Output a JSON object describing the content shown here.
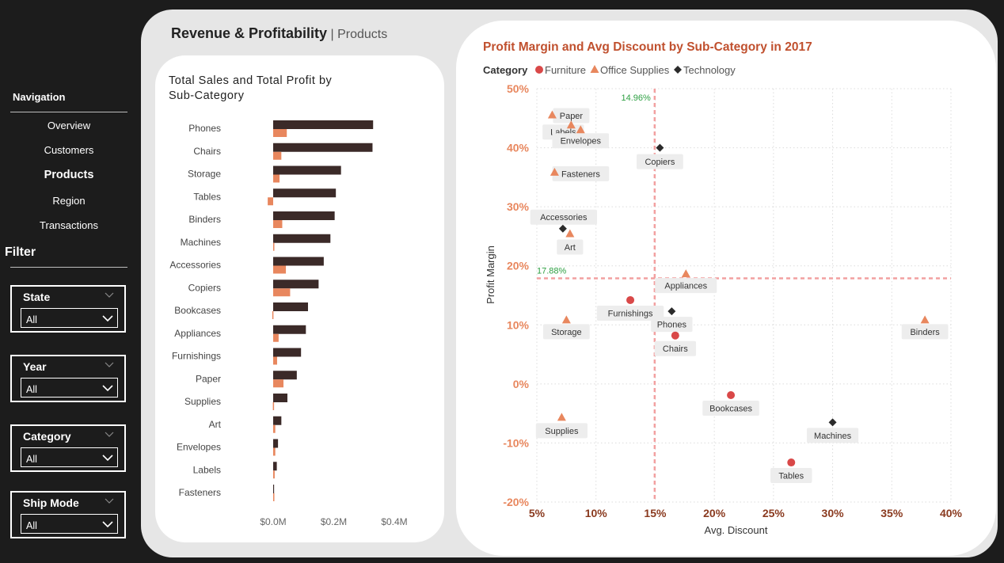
{
  "sidebar": {
    "nav_title": "Navigation",
    "nav_items": [
      "Overview",
      "Customers",
      "Products",
      "Region",
      "Transactions"
    ],
    "active_item": "Products",
    "filter_title": "Filter",
    "slicers": [
      {
        "label": "State",
        "value": "All"
      },
      {
        "label": "Year",
        "value": "All"
      },
      {
        "label": "Category",
        "value": "All"
      },
      {
        "label": "Ship Mode",
        "value": "All"
      }
    ]
  },
  "header": {
    "title": "Revenue &  Profitability",
    "separator": " | ",
    "subtitle": "Products"
  },
  "colors": {
    "sales": "#3b2a28",
    "profit": "#e8875e",
    "furniture": "#d94848",
    "office_supplies": "#e8875e",
    "technology": "#2b2b2b",
    "title_accent": "#c0502e",
    "axis_accent": "#e8875e",
    "ref_line": "#f2a0a0",
    "ref_label": "#2ea043"
  },
  "chart_data": [
    {
      "type": "bar",
      "title": "Total Sales and Total Profit by Sub-Category",
      "orientation": "horizontal",
      "categories": [
        "Phones",
        "Chairs",
        "Storage",
        "Tables",
        "Binders",
        "Machines",
        "Accessories",
        "Copiers",
        "Bookcases",
        "Appliances",
        "Furnishings",
        "Paper",
        "Supplies",
        "Art",
        "Envelopes",
        "Labels",
        "Fasteners"
      ],
      "series": [
        {
          "name": "Total Sales",
          "values": [
            330000,
            328000,
            224000,
            207000,
            203000,
            189000,
            167000,
            150000,
            115000,
            108000,
            92000,
            78000,
            47000,
            27000,
            16000,
            12000,
            3000
          ]
        },
        {
          "name": "Total Profit",
          "values": [
            45000,
            27000,
            21000,
            -18000,
            30000,
            3000,
            42000,
            56000,
            -3000,
            18000,
            13000,
            34000,
            -1000,
            7000,
            7000,
            5000,
            1000
          ]
        }
      ],
      "xlim": [
        0,
        400000
      ],
      "x_ticks": [
        "$0.0M",
        "$0.2M",
        "$0.4M"
      ]
    },
    {
      "type": "scatter",
      "title": "Profit Margin and Avg Discount by Sub-Category in 2017",
      "legend_title": "Category",
      "legend": [
        "Furniture",
        "Office Supplies",
        "Technology"
      ],
      "xlabel": "Avg. Discount",
      "ylabel": "Profit Margin",
      "xlim": [
        5,
        40
      ],
      "ylim": [
        -20,
        50
      ],
      "x_ticks": [
        "5%",
        "10%",
        "15%",
        "20%",
        "25%",
        "30%",
        "35%",
        "40%"
      ],
      "y_ticks": [
        "50%",
        "40%",
        "30%",
        "20%",
        "10%",
        "0%",
        "-10%",
        "-20%"
      ],
      "ref_x": {
        "value": 14.96,
        "label": "14.96%"
      },
      "ref_y": {
        "value": 17.88,
        "label": "17.88%"
      },
      "points": [
        {
          "label": "Paper",
          "category": "Office Supplies",
          "x": 6.3,
          "y": 45.5
        },
        {
          "label": "Labels",
          "category": "Office Supplies",
          "x": 7.9,
          "y": 43.8
        },
        {
          "label": "Envelopes",
          "category": "Office Supplies",
          "x": 8.7,
          "y": 43.0
        },
        {
          "label": "Fasteners",
          "category": "Office Supplies",
          "x": 6.5,
          "y": 35.8
        },
        {
          "label": "Copiers",
          "category": "Technology",
          "x": 15.4,
          "y": 40.0
        },
        {
          "label": "Accessories",
          "category": "Technology",
          "x": 7.2,
          "y": 26.3
        },
        {
          "label": "Art",
          "category": "Office Supplies",
          "x": 7.8,
          "y": 25.4
        },
        {
          "label": "Appliances",
          "category": "Office Supplies",
          "x": 17.6,
          "y": 18.6
        },
        {
          "label": "Furnishings",
          "category": "Furniture",
          "x": 12.9,
          "y": 14.2
        },
        {
          "label": "Phones",
          "category": "Technology",
          "x": 16.4,
          "y": 12.3
        },
        {
          "label": "Storage",
          "category": "Office Supplies",
          "x": 7.5,
          "y": 10.8
        },
        {
          "label": "Chairs",
          "category": "Furniture",
          "x": 16.7,
          "y": 8.2
        },
        {
          "label": "Binders",
          "category": "Office Supplies",
          "x": 37.8,
          "y": 10.8
        },
        {
          "label": "Bookcases",
          "category": "Furniture",
          "x": 21.4,
          "y": -1.9
        },
        {
          "label": "Supplies",
          "category": "Office Supplies",
          "x": 7.1,
          "y": -5.7
        },
        {
          "label": "Machines",
          "category": "Technology",
          "x": 30.0,
          "y": -6.5
        },
        {
          "label": "Tables",
          "category": "Furniture",
          "x": 26.5,
          "y": -13.3
        }
      ]
    }
  ]
}
